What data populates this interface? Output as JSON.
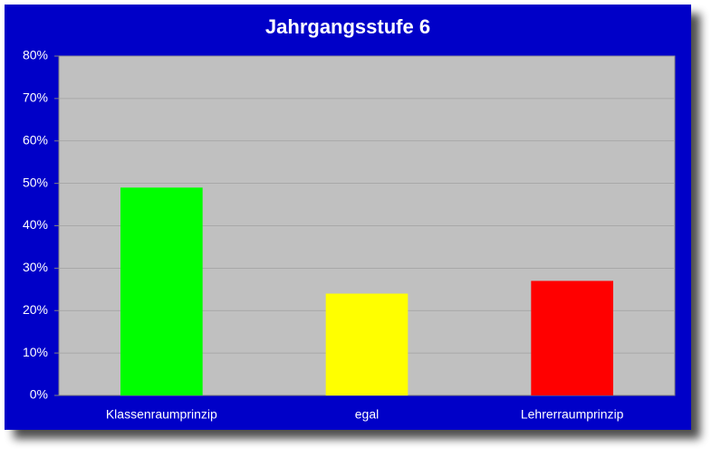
{
  "chart_data": {
    "type": "bar",
    "title": "Jahrgangsstufe 6",
    "categories": [
      "Klassenraumprinzip",
      "egal",
      "Lehrerraumprinzip"
    ],
    "values": [
      49,
      24,
      27
    ],
    "colors": [
      "#00ff00",
      "#ffff00",
      "#ff0000"
    ],
    "ylim": [
      0,
      80
    ],
    "yticks": [
      {
        "value": 0,
        "label": "0%"
      },
      {
        "value": 10,
        "label": "10%"
      },
      {
        "value": 20,
        "label": "20%"
      },
      {
        "value": 30,
        "label": "30%"
      },
      {
        "value": 40,
        "label": "40%"
      },
      {
        "value": 50,
        "label": "50%"
      },
      {
        "value": 60,
        "label": "60%"
      },
      {
        "value": 70,
        "label": "70%"
      },
      {
        "value": 80,
        "label": "80%"
      }
    ],
    "grid": true
  }
}
